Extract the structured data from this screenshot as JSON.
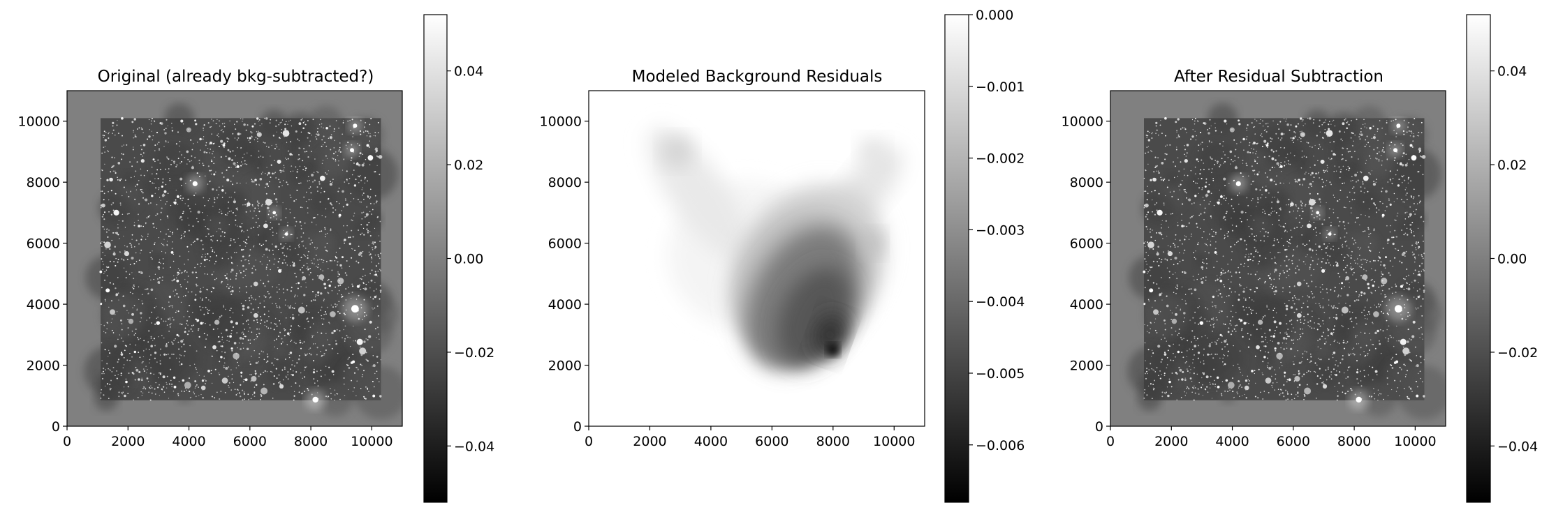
{
  "chart_data": [
    {
      "type": "heatmap",
      "title": "Original (already bkg-subtracted?)",
      "xlabel": "",
      "ylabel": "",
      "xlim": [
        0,
        11000
      ],
      "ylim": [
        0,
        11000
      ],
      "x_ticks": [
        0,
        2000,
        4000,
        6000,
        8000,
        10000
      ],
      "y_ticks": [
        0,
        2000,
        4000,
        6000,
        8000,
        10000
      ],
      "image_region": {
        "x": [
          1100,
          10300
        ],
        "y": [
          850,
          10100
        ]
      },
      "background_value": 0.0,
      "colormap": "gray",
      "colorbar": {
        "range": [
          -0.052,
          0.052
        ],
        "ticks": [
          0.04,
          0.02,
          0.0,
          -0.02,
          -0.04
        ],
        "tick_labels": [
          "0.04",
          "0.02",
          "0.00",
          "−0.02",
          "−0.04"
        ]
      }
    },
    {
      "type": "heatmap",
      "title": "Modeled Background Residuals",
      "xlabel": "",
      "ylabel": "",
      "xlim": [
        0,
        11000
      ],
      "ylim": [
        0,
        11000
      ],
      "x_ticks": [
        0,
        2000,
        4000,
        6000,
        8000,
        10000
      ],
      "y_ticks": [
        0,
        2000,
        4000,
        6000,
        8000,
        10000
      ],
      "background_value": 0.0,
      "colormap": "gray",
      "minimum": {
        "x": 8000,
        "y": 2500,
        "value": -0.0068
      },
      "colorbar": {
        "range": [
          -0.0068,
          0.0
        ],
        "ticks": [
          0.0,
          -0.001,
          -0.002,
          -0.003,
          -0.004,
          -0.005,
          -0.006
        ],
        "tick_labels": [
          "0.000",
          "−0.001",
          "−0.002",
          "−0.003",
          "−0.004",
          "−0.005",
          "−0.006"
        ]
      }
    },
    {
      "type": "heatmap",
      "title": "After Residual Subtraction",
      "xlabel": "",
      "ylabel": "",
      "xlim": [
        0,
        11000
      ],
      "ylim": [
        0,
        11000
      ],
      "x_ticks": [
        0,
        2000,
        4000,
        6000,
        8000,
        10000
      ],
      "y_ticks": [
        0,
        2000,
        4000,
        6000,
        8000,
        10000
      ],
      "image_region": {
        "x": [
          1100,
          10300
        ],
        "y": [
          850,
          10100
        ]
      },
      "background_value": 0.0,
      "colormap": "gray",
      "colorbar": {
        "range": [
          -0.052,
          0.052
        ],
        "ticks": [
          0.04,
          0.02,
          0.0,
          -0.02,
          -0.04
        ],
        "tick_labels": [
          "0.04",
          "0.02",
          "0.00",
          "−0.02",
          "−0.04"
        ]
      }
    }
  ]
}
